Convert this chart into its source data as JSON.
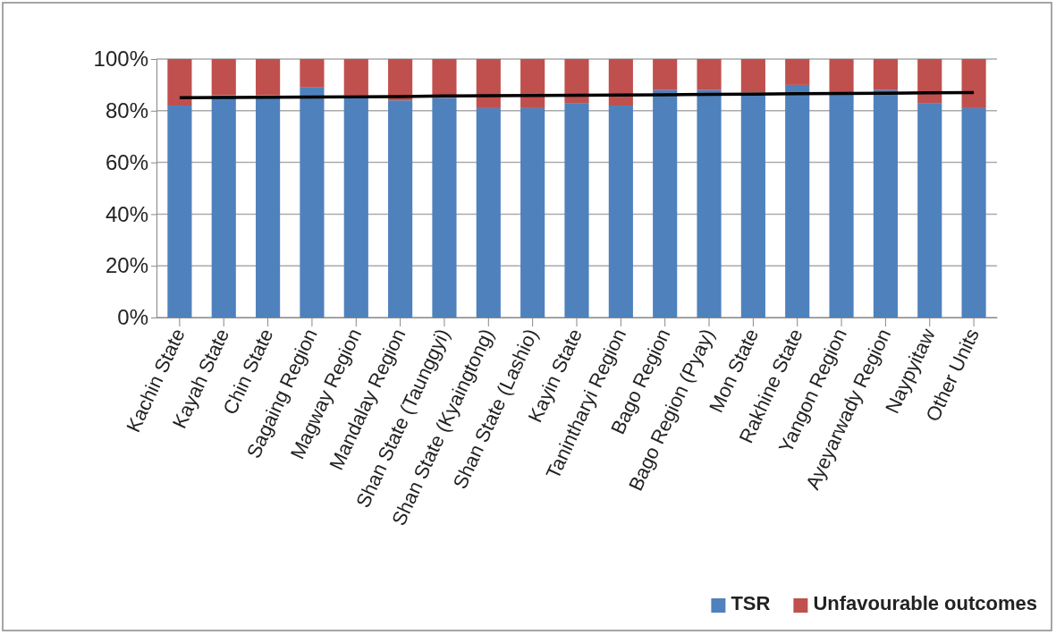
{
  "chart_data": {
    "type": "bar",
    "stacked": true,
    "categories": [
      "Kachin State",
      "Kayah State",
      "Chin State",
      "Sagaing Region",
      "Magway Region",
      "Mandalay Region",
      "Shan State (Taunggyi)",
      "Shan State (Kyaingtong)",
      "Shan State (Lashio)",
      "Kayin State",
      "Tanintharyi Region",
      "Bago Region",
      "Bago Region (Pyay)",
      "Mon State",
      "Rakhine State",
      "Yangon Region",
      "Ayeyarwady Region",
      "Naypyitaw",
      "Other Units"
    ],
    "series": [
      {
        "name": "TSR",
        "color": "#4f81bd",
        "values": [
          82,
          86,
          86,
          89,
          86,
          84,
          85,
          81,
          81,
          83,
          82,
          88,
          88,
          87,
          90,
          87,
          88,
          83,
          81
        ]
      },
      {
        "name": "Unfavourable outcomes",
        "color": "#c0504d",
        "values": [
          18,
          14,
          14,
          11,
          14,
          16,
          15,
          19,
          19,
          17,
          18,
          12,
          12,
          13,
          10,
          13,
          12,
          17,
          19
        ]
      },
      {
        "type": "line",
        "color": "#000000",
        "values": [
          85.0,
          85.1,
          85.2,
          85.3,
          85.4,
          85.5,
          85.7,
          85.8,
          85.9,
          86.0,
          86.1,
          86.2,
          86.3,
          86.4,
          86.6,
          86.7,
          86.8,
          86.9,
          87.0
        ]
      }
    ],
    "ylim": [
      0,
      100
    ],
    "yticks": [
      {
        "value": 0,
        "label": "0%"
      },
      {
        "value": 20,
        "label": "20%"
      },
      {
        "value": 40,
        "label": "40%"
      },
      {
        "value": 60,
        "label": "60%"
      },
      {
        "value": 80,
        "label": "80%"
      },
      {
        "value": 100,
        "label": "100%"
      }
    ],
    "grid": "y",
    "legend": "bottom right",
    "line_style": "solid",
    "marker": "none"
  }
}
